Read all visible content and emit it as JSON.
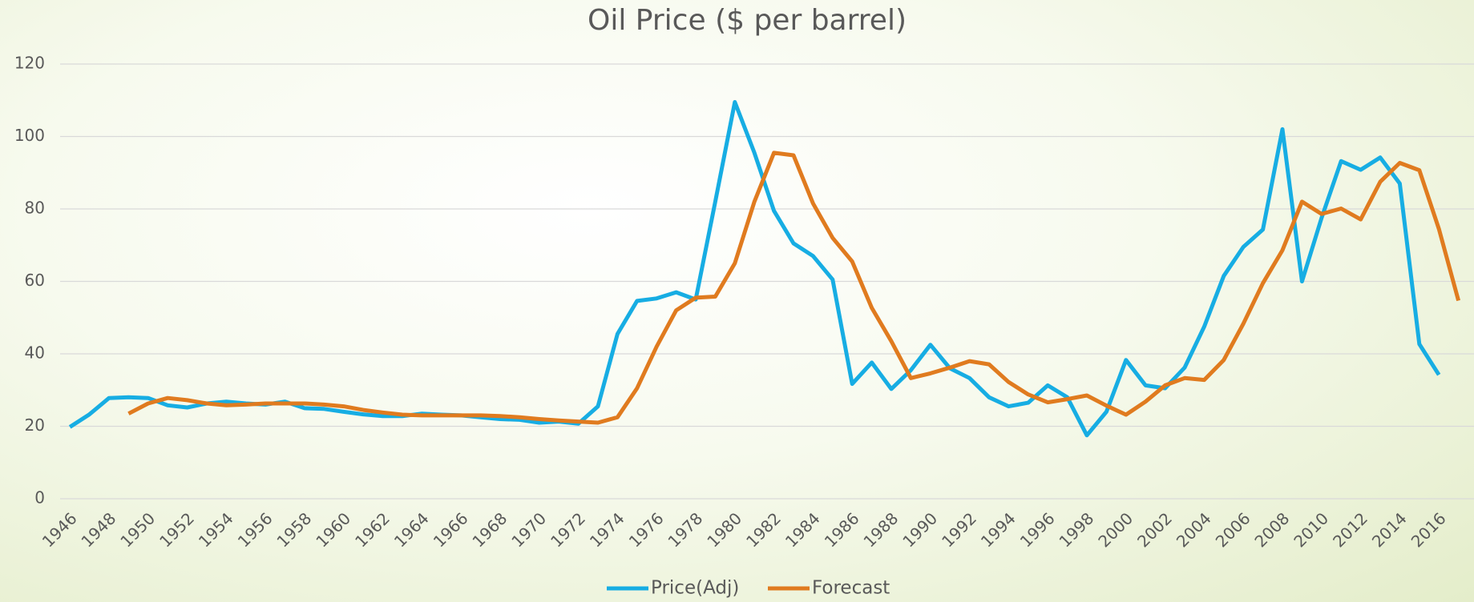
{
  "chart_data": {
    "type": "line",
    "title": "Oil Price ($ per barrel)",
    "categories": [
      "1946",
      null,
      "1948",
      null,
      "1950",
      null,
      "1952",
      null,
      "1954",
      null,
      "1956",
      null,
      "1958",
      null,
      "1960",
      null,
      "1962",
      null,
      "1964",
      null,
      "1966",
      null,
      "1968",
      null,
      "1970",
      null,
      "1972",
      null,
      "1974",
      null,
      "1976",
      null,
      "1978",
      null,
      "1980",
      null,
      "1982",
      null,
      "1984",
      null,
      "1986",
      null,
      "1988",
      null,
      "1990",
      null,
      "1992",
      null,
      "1994",
      null,
      "1996",
      null,
      "1998",
      null,
      "2000",
      null,
      "2002",
      null,
      "2004",
      null,
      "2006",
      null,
      "2008",
      null,
      "2010",
      null,
      "2012",
      null,
      "2014",
      null,
      "2016",
      null
    ],
    "series": [
      {
        "name": "Price(Adj)",
        "color": "#17ade3",
        "values": [
          19.8,
          23.3,
          27.8,
          28.0,
          27.8,
          25.8,
          25.2,
          26.3,
          26.8,
          26.3,
          26.0,
          26.8,
          25.0,
          24.8,
          24.0,
          23.3,
          22.8,
          22.8,
          23.5,
          23.2,
          23.0,
          22.5,
          22.0,
          21.8,
          21.0,
          21.3,
          20.7,
          25.5,
          45.5,
          54.6,
          55.3,
          57.0,
          55.0,
          82,
          109.5,
          95.5,
          79.5,
          70.5,
          67,
          60.5,
          31.7,
          37.6,
          30.3,
          35.5,
          42.5,
          36,
          33.3,
          28,
          25.5,
          26.5,
          31.3,
          28,
          17.5,
          24,
          38.3,
          31.3,
          30.5,
          36.2,
          47.5,
          61.5,
          69.5,
          74.3,
          102,
          60,
          77.5,
          93.2,
          90.8,
          94.2,
          87,
          42.7,
          34.2,
          null
        ]
      },
      {
        "name": "Forecast",
        "color": "#e07b1f",
        "values": [
          null,
          null,
          null,
          23.5,
          26.3,
          27.8,
          27.2,
          26.3,
          25.8,
          26.0,
          26.3,
          26.3,
          26.3,
          26.0,
          25.5,
          24.5,
          23.8,
          23.2,
          23.0,
          23.0,
          23.0,
          23.0,
          22.8,
          22.5,
          22.0,
          21.6,
          21.3,
          21.0,
          22.5,
          30.5,
          42,
          52,
          55.5,
          55.8,
          65,
          82,
          95.5,
          94.8,
          81.5,
          72,
          65.5,
          52.7,
          43.5,
          33.3,
          34.6,
          36.2,
          38,
          37.1,
          32.2,
          28.8,
          26.6,
          27.5,
          28.5,
          25.7,
          23.2,
          26.8,
          31.3,
          33.3,
          32.8,
          38.3,
          48.3,
          59.5,
          68.6,
          82,
          78.6,
          80.1,
          77.1,
          87.5,
          92.7,
          90.7,
          74.5,
          54.7
        ]
      }
    ],
    "ylim": [
      0,
      120
    ],
    "yticks": [
      0,
      20,
      40,
      60,
      80,
      100,
      120
    ],
    "grid": true,
    "legend": "bottom"
  }
}
